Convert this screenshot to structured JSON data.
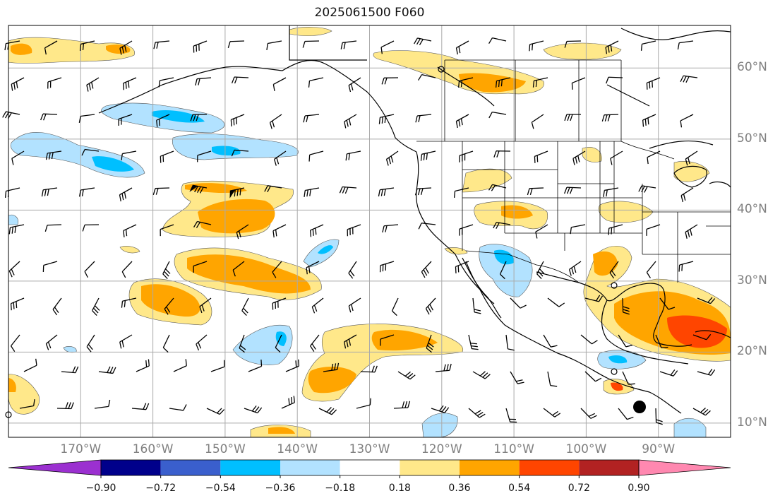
{
  "title": "2025061500 F060",
  "lat_labels": [
    "60°N",
    "50°N",
    "40°N",
    "30°N",
    "20°N",
    "10°N"
  ],
  "lon_labels": [
    "170°W",
    "160°W",
    "150°W",
    "140°W",
    "130°W",
    "120°W",
    "110°W",
    "100°W",
    "90°W"
  ],
  "colorbar": {
    "ticks": [
      "−0.90",
      "−0.72",
      "−0.54",
      "−0.36",
      "−0.18",
      "0.18",
      "0.36",
      "0.54",
      "0.72",
      "0.90"
    ],
    "colors": [
      "#9b30d0",
      "#00008b",
      "#3a5fcd",
      "#00bfff",
      "#b2e2ff",
      "#ffffff",
      "#ffe88a",
      "#ffa500",
      "#ff4500",
      "#b22222",
      "#ff88b0"
    ]
  },
  "map_extent": {
    "lon": [
      -180,
      -80
    ],
    "lat": [
      8,
      66
    ]
  },
  "colors": {
    "grid": "#aaaaaa",
    "coast": "#000000",
    "label": "#808080"
  }
}
